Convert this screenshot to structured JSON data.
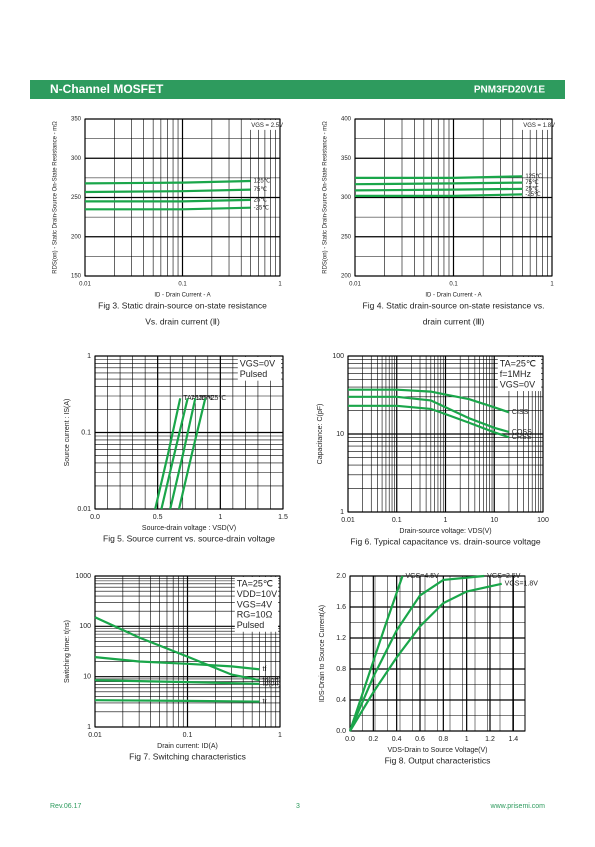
{
  "header": {
    "left": "N-Channel MOSFET",
    "right": "PNM3FD20V1E"
  },
  "footer": {
    "left": "Rev.06.17",
    "center": "3",
    "right": "www.prisemi.com"
  },
  "chart_data": [
    {
      "type": "line",
      "title": "Fig 3. Static drain-source on-state resistance",
      "subtitle": "Vs. drain current (Ⅱ)",
      "xlabel": "ID - Drain Current - A",
      "ylabel": "RDS(on) - Static Drain-Source On-State Resistance - mΩ",
      "xlog": true,
      "ylog": false,
      "grid": true,
      "xlim": [
        0.01,
        1
      ],
      "ylim": [
        150,
        350
      ],
      "xticks": [
        0.01,
        0.1,
        1
      ],
      "yticks": [
        150,
        200,
        250,
        300,
        350
      ],
      "annotations": [
        "VGS = 2.5V"
      ],
      "series": [
        {
          "name": "125℃",
          "color": "#1aa64a",
          "x": [
            0.01,
            0.1,
            0.5
          ],
          "values": [
            268,
            269,
            271
          ]
        },
        {
          "name": "75℃",
          "color": "#1aa64a",
          "x": [
            0.01,
            0.1,
            0.5
          ],
          "values": [
            257,
            258,
            260
          ]
        },
        {
          "name": "25℃",
          "color": "#1aa64a",
          "x": [
            0.01,
            0.1,
            0.5
          ],
          "values": [
            245,
            245,
            247
          ]
        },
        {
          "name": "-25℃",
          "color": "#1aa64a",
          "x": [
            0.01,
            0.1,
            0.5
          ],
          "values": [
            235,
            235,
            237
          ]
        }
      ]
    },
    {
      "type": "line",
      "title": "Fig 4. Static drain-source on-state resistance vs.",
      "subtitle": "drain current (Ⅲ)",
      "xlabel": "ID - Drain Current - A",
      "ylabel": "RDS(on) - Static Drain-Source On-State Resistance - mΩ",
      "xlog": true,
      "ylog": false,
      "grid": true,
      "xlim": [
        0.01,
        1
      ],
      "ylim": [
        200,
        400
      ],
      "xticks": [
        0.01,
        0.1,
        1
      ],
      "yticks": [
        200,
        250,
        300,
        350,
        400
      ],
      "annotations": [
        "VGS = 1.8V"
      ],
      "series": [
        {
          "name": "125℃",
          "color": "#1aa64a",
          "x": [
            0.01,
            0.1,
            0.5
          ],
          "values": [
            325,
            325,
            327
          ]
        },
        {
          "name": "75℃",
          "color": "#1aa64a",
          "x": [
            0.01,
            0.1,
            0.5
          ],
          "values": [
            317,
            318,
            319
          ]
        },
        {
          "name": "25℃",
          "color": "#1aa64a",
          "x": [
            0.01,
            0.1,
            0.5
          ],
          "values": [
            309,
            310,
            311
          ]
        },
        {
          "name": "-25℃",
          "color": "#1aa64a",
          "x": [
            0.01,
            0.1,
            0.5
          ],
          "values": [
            302,
            302,
            304
          ]
        }
      ]
    },
    {
      "type": "line",
      "title": "Fig 5. Source current vs. source-drain voltage",
      "xlabel": "Source-drain voltage : VSD(V)",
      "ylabel": "Source current : IS(A)",
      "xlog": false,
      "ylog": true,
      "grid": true,
      "xlim": [
        0,
        1.5
      ],
      "ylim": [
        0.01,
        1
      ],
      "xticks": [
        {
          "value": 0,
          "label": "0.0"
        },
        0.5,
        1,
        1.5
      ],
      "yticks": [
        0.01,
        0.1,
        1
      ],
      "annotations": [
        "VGS=0V",
        "Pulsed"
      ],
      "series": [
        {
          "name": "TA=125℃",
          "color": "#1aa64a",
          "x": [
            0.48,
            0.58,
            0.68
          ],
          "values": [
            0.01,
            0.05,
            0.28
          ]
        },
        {
          "name": "75℃",
          "color": "#1aa64a",
          "x": [
            0.53,
            0.63,
            0.74
          ],
          "values": [
            0.01,
            0.05,
            0.28
          ]
        },
        {
          "name": "25℃",
          "color": "#1aa64a",
          "x": [
            0.6,
            0.7,
            0.8
          ],
          "values": [
            0.01,
            0.05,
            0.28
          ]
        },
        {
          "name": "-25℃",
          "color": "#1aa64a",
          "x": [
            0.67,
            0.77,
            0.88
          ],
          "values": [
            0.01,
            0.05,
            0.28
          ]
        }
      ]
    },
    {
      "type": "line",
      "title": "Fig 6. Typical capacitance vs. drain-source voltage",
      "xlabel": "Drain-source voltage: VDS(V)",
      "ylabel": "Capacitance: C(pF)",
      "xlog": true,
      "ylog": true,
      "grid": true,
      "xlim": [
        0.01,
        100
      ],
      "ylim": [
        1,
        100
      ],
      "xticks": [
        0.01,
        0.1,
        1,
        10,
        100
      ],
      "yticks": [
        1,
        10,
        100
      ],
      "annotations": [
        "TA=25℃",
        "f=1MHz",
        "VGS=0V"
      ],
      "series": [
        {
          "name": "CISS",
          "color": "#1aa64a",
          "x": [
            0.01,
            0.1,
            0.5,
            1,
            3,
            10,
            20
          ],
          "values": [
            37,
            37,
            35,
            32,
            28,
            22,
            19
          ]
        },
        {
          "name": "COSS",
          "color": "#1aa64a",
          "x": [
            0.01,
            0.1,
            0.5,
            1,
            3,
            10,
            20
          ],
          "values": [
            30,
            30,
            27,
            22,
            16,
            12,
            10.6
          ]
        },
        {
          "name": "CRSS",
          "color": "#1aa64a",
          "x": [
            0.01,
            0.1,
            0.5,
            1,
            3,
            10,
            20
          ],
          "values": [
            23,
            23,
            21,
            18,
            14,
            10.5,
            9.1
          ]
        }
      ]
    },
    {
      "type": "line",
      "title": "Fig 7. Switching characteristics",
      "xlabel": "Drain current: ID(A)",
      "ylabel": "Switching time: t(ns)",
      "xlog": true,
      "ylog": true,
      "grid": true,
      "xlim": [
        0.01,
        1
      ],
      "ylim": [
        1,
        1000
      ],
      "xticks": [
        0.01,
        0.1,
        1
      ],
      "yticks": [
        1,
        10,
        100,
        1000
      ],
      "annotations": [
        "TA=25℃",
        "VDD=10V",
        "VGS=4V",
        "RG=10Ω",
        "Pulsed"
      ],
      "series": [
        {
          "name": "td(off)",
          "color": "#1aa64a",
          "x": [
            0.01,
            0.03,
            0.1,
            0.3,
            0.6
          ],
          "values": [
            152,
            60,
            25,
            11,
            8.5
          ]
        },
        {
          "name": "tf",
          "color": "#1aa64a",
          "x": [
            0.01,
            0.03,
            0.1,
            0.3,
            0.6
          ],
          "values": [
            24.5,
            20,
            18,
            16,
            14
          ]
        },
        {
          "name": "td(on)",
          "color": "#1aa64a",
          "x": [
            0.01,
            0.1,
            0.6
          ],
          "values": [
            8.5,
            7.8,
            7.2
          ]
        },
        {
          "name": "tr",
          "color": "#1aa64a",
          "x": [
            0.01,
            0.1,
            0.6
          ],
          "values": [
            3.4,
            3.3,
            3.2
          ]
        }
      ]
    },
    {
      "type": "line",
      "title": "Fig 8. Output characteristics",
      "xlabel": "VDS-Drain  to Source  Voltage(V)",
      "ylabel": "IDS-Drain to Source Current(A)",
      "xlog": false,
      "ylog": false,
      "grid": true,
      "xlim": [
        0,
        1.5
      ],
      "ylim": [
        0,
        2
      ],
      "xticks": [
        {
          "value": 0,
          "label": "0.0"
        },
        0.2,
        0.4,
        0.6,
        0.8,
        1.0,
        1.2,
        1.4
      ],
      "yticks": [
        {
          "value": 0,
          "label": "0.0"
        },
        0.4,
        0.8,
        1.2,
        1.6,
        {
          "value": 2,
          "label": "2.0"
        }
      ],
      "annotations": [],
      "series": [
        {
          "name": "VGS=4.5V",
          "color": "#1aa64a",
          "x": [
            0,
            0.1,
            0.2,
            0.3,
            0.45
          ],
          "values": [
            0,
            0.45,
            0.9,
            1.35,
            2.0
          ]
        },
        {
          "name": "VGS=2.5V",
          "color": "#1aa64a",
          "x": [
            0,
            0.2,
            0.4,
            0.6,
            0.8,
            1.15
          ],
          "values": [
            0,
            0.7,
            1.3,
            1.75,
            1.95,
            2.0
          ]
        },
        {
          "name": "VGS=1.8V",
          "color": "#1aa64a",
          "x": [
            0,
            0.2,
            0.4,
            0.6,
            0.8,
            1.0,
            1.3
          ],
          "values": [
            0,
            0.5,
            0.95,
            1.35,
            1.65,
            1.8,
            1.9
          ]
        }
      ]
    }
  ]
}
